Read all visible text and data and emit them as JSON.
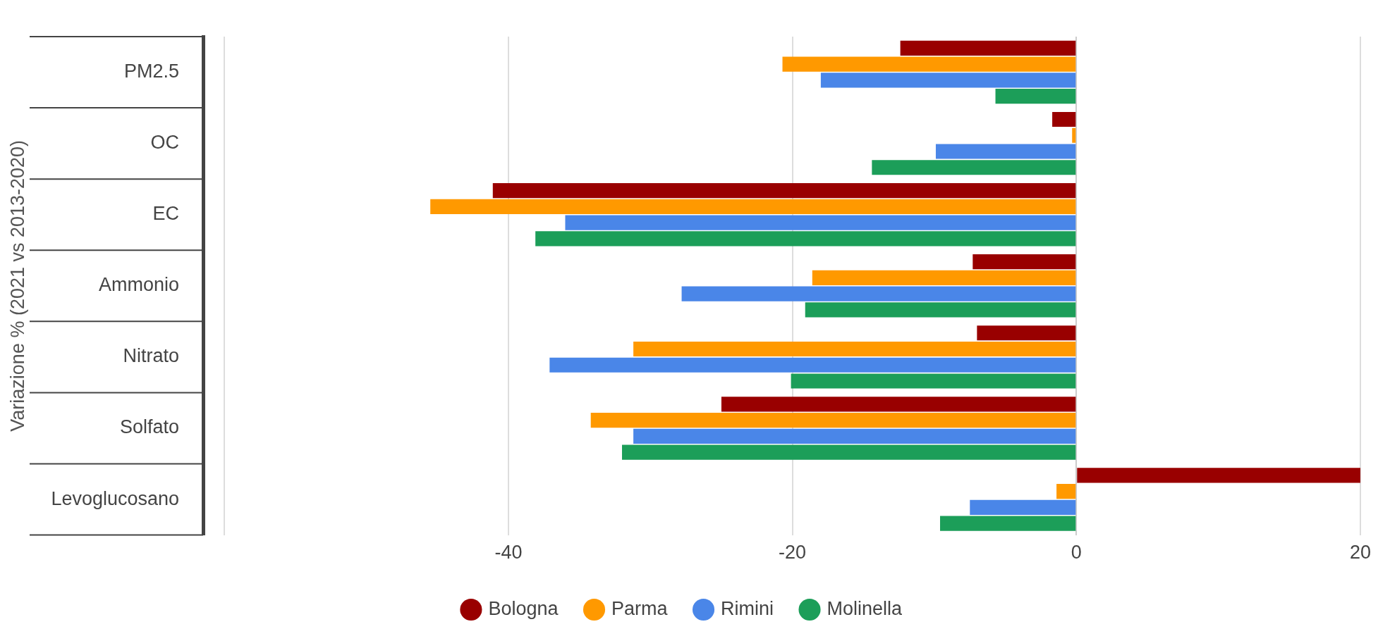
{
  "chart_data": {
    "type": "bar",
    "orientation": "horizontal",
    "ylabel": "Variazione % (2021 vs 2013-2020)",
    "categories": [
      "PM2.5",
      "OC",
      "EC",
      "Ammonio",
      "Nitrato",
      "Solfato",
      "Levoglucosano"
    ],
    "series": [
      {
        "name": "Bologna",
        "color": "#990000",
        "values": [
          -12.4,
          -1.7,
          -41.1,
          -7.3,
          -7.0,
          -25.0,
          20
        ]
      },
      {
        "name": "Parma",
        "color": "#ff9900",
        "values": [
          -20.7,
          -0.3,
          -45.5,
          -18.6,
          -31.2,
          -34.2,
          -1.4
        ]
      },
      {
        "name": "Rimini",
        "color": "#4a86e8",
        "values": [
          -18.0,
          -9.9,
          -36.0,
          -27.8,
          -37.1,
          -31.2,
          -7.5
        ]
      },
      {
        "name": "Molinella",
        "color": "#1c9e59",
        "values": [
          -5.7,
          -14.4,
          -38.1,
          -19.1,
          -20.1,
          -32.0,
          -9.6
        ]
      }
    ],
    "xlim": [
      -61.5,
      20
    ],
    "xticks": [
      {
        "value": -60,
        "label": null
      },
      -40,
      -20,
      0,
      20
    ],
    "grid": "x",
    "legend": "bottom"
  }
}
